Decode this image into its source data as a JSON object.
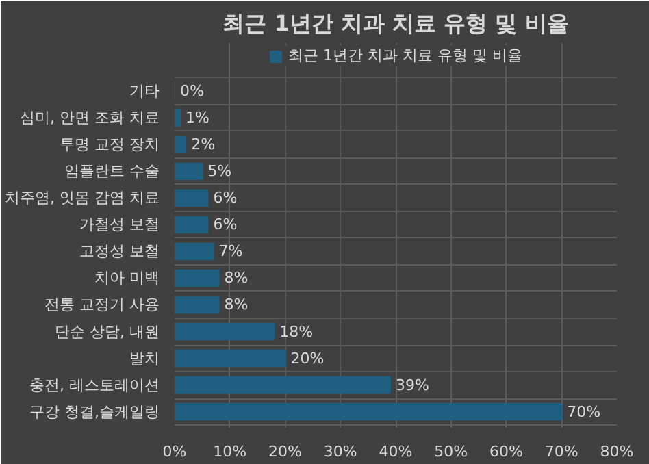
{
  "chart_data": {
    "type": "bar",
    "orientation": "horizontal",
    "title": "최근 1년간 치과 치료 유형 및 비율",
    "categories": [
      "기타",
      "심미, 안면 조화 치료",
      "투명 교정 장치",
      "임플란트 수술",
      "치주염, 잇몸 감염 치료",
      "가철성 보철",
      "고정성 보철",
      "치아 미백",
      "전통 교정기 사용",
      "단순 상담, 내원",
      "발치",
      "충전, 레스토레이션",
      "구강 청결,슬케일링"
    ],
    "series": [
      {
        "name": "최근 1년간 치과 치료 유형 및 비율",
        "color": "#1f5f80",
        "values": [
          0,
          1,
          2,
          5,
          6,
          6,
          7,
          8,
          8,
          18,
          20,
          39,
          70
        ],
        "value_labels": [
          "0%",
          "1%",
          "2%",
          "5%",
          "6%",
          "6%",
          "7%",
          "8%",
          "8%",
          "18%",
          "20%",
          "39%",
          "70%"
        ]
      }
    ],
    "xlim": [
      0,
      80
    ],
    "xticks": [
      {
        "value": 0,
        "label": "0%"
      },
      {
        "value": 10,
        "label": "10%"
      },
      {
        "value": 20,
        "label": "20%"
      },
      {
        "value": 30,
        "label": "30%"
      },
      {
        "value": 40,
        "label": "40%"
      },
      {
        "value": 50,
        "label": "50%"
      },
      {
        "value": 60,
        "label": "60%"
      },
      {
        "value": 70,
        "label": "70%"
      },
      {
        "value": 80,
        "label": "80%"
      }
    ],
    "grid": true,
    "legend": "top"
  }
}
